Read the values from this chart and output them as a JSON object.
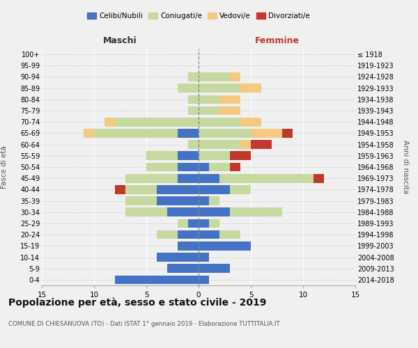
{
  "age_groups": [
    "0-4",
    "5-9",
    "10-14",
    "15-19",
    "20-24",
    "25-29",
    "30-34",
    "35-39",
    "40-44",
    "45-49",
    "50-54",
    "55-59",
    "60-64",
    "65-69",
    "70-74",
    "75-79",
    "80-84",
    "85-89",
    "90-94",
    "95-99",
    "100+"
  ],
  "birth_years": [
    "2014-2018",
    "2009-2013",
    "2004-2008",
    "1999-2003",
    "1994-1998",
    "1989-1993",
    "1984-1988",
    "1979-1983",
    "1974-1978",
    "1969-1973",
    "1964-1968",
    "1959-1963",
    "1954-1958",
    "1949-1953",
    "1944-1948",
    "1939-1943",
    "1934-1938",
    "1929-1933",
    "1924-1928",
    "1919-1923",
    "≤ 1918"
  ],
  "males": {
    "celibi": [
      8,
      3,
      4,
      2,
      2,
      1,
      3,
      4,
      4,
      2,
      2,
      2,
      0,
      2,
      0,
      0,
      0,
      0,
      0,
      0,
      0
    ],
    "coniugati": [
      0,
      0,
      0,
      0,
      2,
      1,
      4,
      3,
      3,
      5,
      3,
      3,
      1,
      8,
      8,
      1,
      1,
      2,
      1,
      0,
      0
    ],
    "vedovi": [
      0,
      0,
      0,
      0,
      0,
      0,
      0,
      0,
      0,
      0,
      0,
      0,
      0,
      1,
      1,
      0,
      0,
      0,
      0,
      0,
      0
    ],
    "divorziati": [
      0,
      0,
      0,
      0,
      0,
      0,
      0,
      0,
      1,
      0,
      0,
      0,
      0,
      0,
      0,
      0,
      0,
      0,
      0,
      0,
      0
    ]
  },
  "females": {
    "nubili": [
      1,
      3,
      1,
      5,
      2,
      1,
      3,
      1,
      3,
      2,
      1,
      0,
      0,
      0,
      0,
      0,
      0,
      0,
      0,
      0,
      0
    ],
    "coniugate": [
      0,
      0,
      0,
      0,
      2,
      1,
      5,
      1,
      2,
      9,
      2,
      3,
      4,
      5,
      4,
      2,
      2,
      4,
      3,
      0,
      0
    ],
    "vedove": [
      0,
      0,
      0,
      0,
      0,
      0,
      0,
      0,
      0,
      0,
      0,
      0,
      1,
      3,
      2,
      2,
      2,
      2,
      1,
      0,
      0
    ],
    "divorziate": [
      0,
      0,
      0,
      0,
      0,
      0,
      0,
      0,
      0,
      1,
      1,
      2,
      2,
      1,
      0,
      0,
      0,
      0,
      0,
      0,
      0
    ]
  },
  "colors": {
    "celibi_nubili": "#4472c4",
    "coniugati_e": "#c5d9a0",
    "vedovi_e": "#f5c97f",
    "divorziati_e": "#c0392b"
  },
  "xlim": 15,
  "title": "Popolazione per età, sesso e stato civile - 2019",
  "subtitle": "COMUNE DI CHIESANUOVA (TO) - Dati ISTAT 1° gennaio 2019 - Elaborazione TUTTITALIA.IT",
  "ylabel_left": "Fasce di età",
  "ylabel_right": "Anni di nascita",
  "xlabel_left": "Maschi",
  "xlabel_right": "Femmine",
  "background_color": "#f0f0f0"
}
